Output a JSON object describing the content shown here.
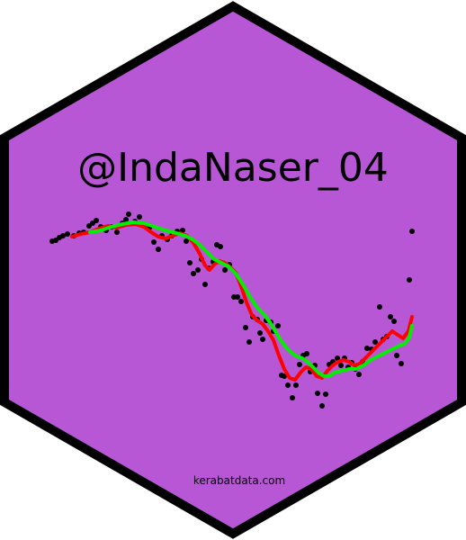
{
  "sticker": {
    "title": "@IndaNaser_04",
    "url": "kerabatdata.com",
    "fill_color": "#b857d6",
    "border_color": "#000000"
  },
  "plot": {
    "point_color": "#000000",
    "smooth_red_color": "#ff0000",
    "smooth_green_color": "#00ee00"
  }
}
